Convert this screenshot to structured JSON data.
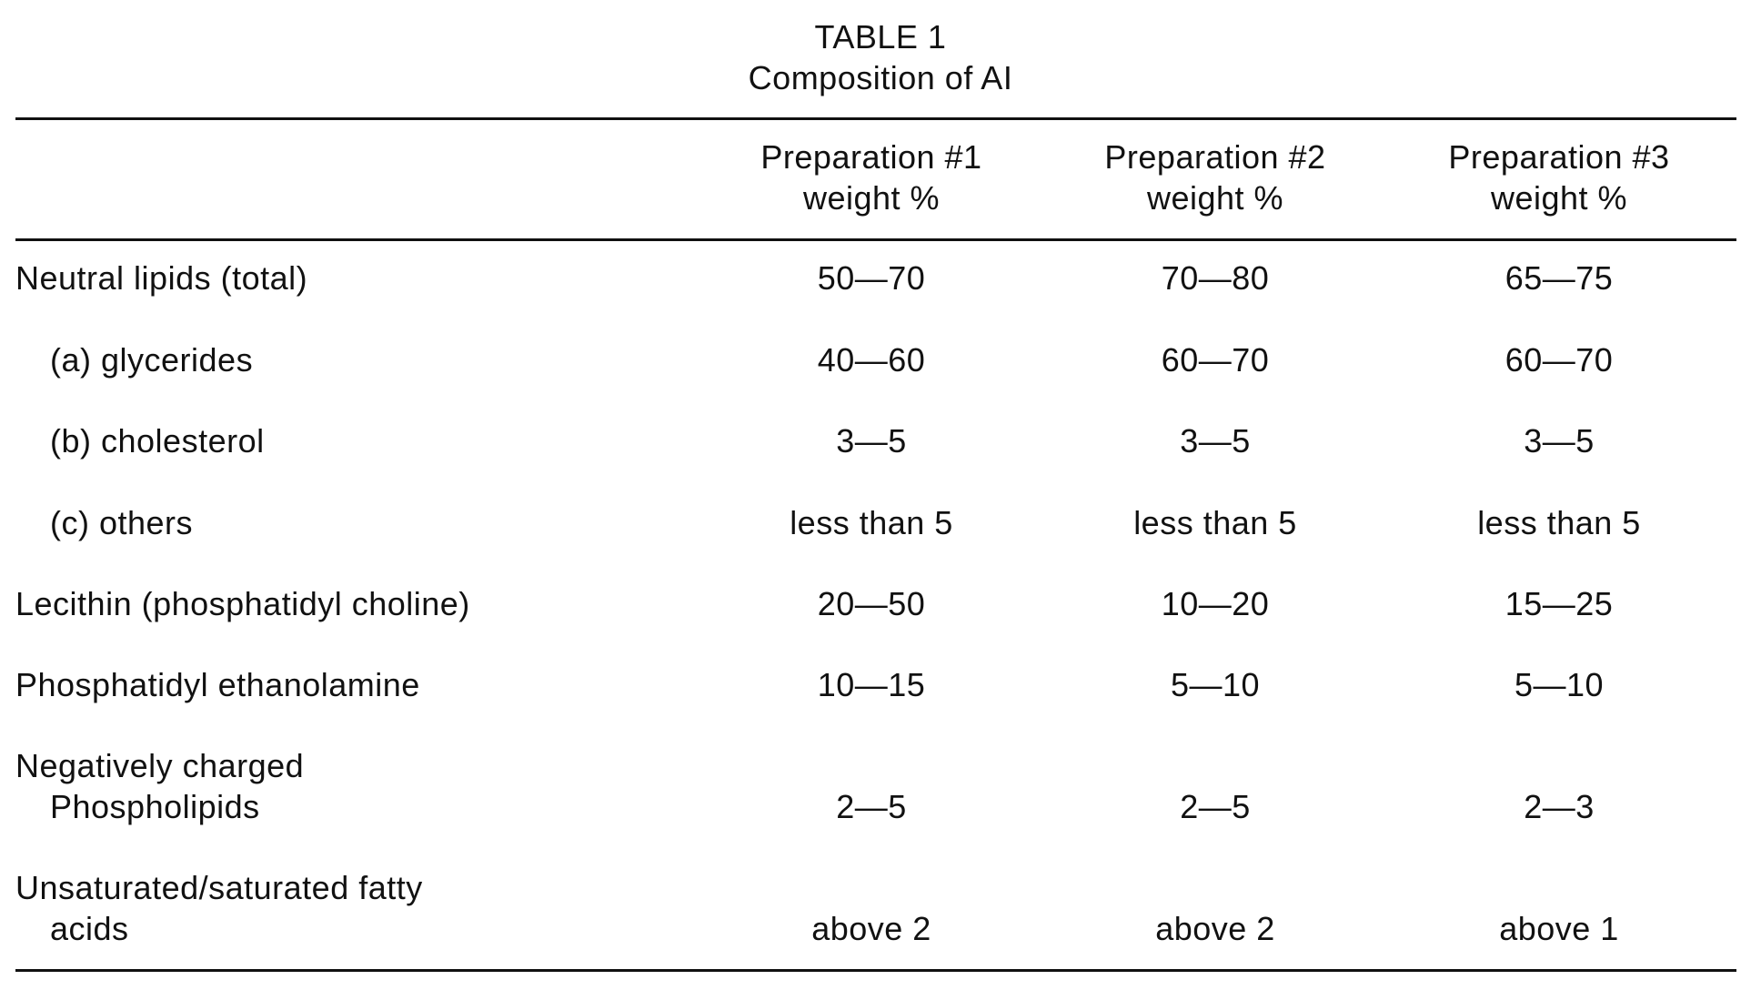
{
  "table": {
    "label": "TABLE 1",
    "title": "Composition of AI",
    "columns": [
      {
        "name": "Preparation #1",
        "unit": "weight %"
      },
      {
        "name": "Preparation #2",
        "unit": "weight %"
      },
      {
        "name": "Preparation #3",
        "unit": "weight %"
      }
    ],
    "rows": [
      {
        "label": "Neutral lipids (total)",
        "values": [
          "50—70",
          "70—80",
          "65—75"
        ]
      },
      {
        "label": "(a) glycerides",
        "values": [
          "40—60",
          "60—70",
          "60—70"
        ]
      },
      {
        "label": "(b) cholesterol",
        "values": [
          "3—5",
          "3—5",
          "3—5"
        ]
      },
      {
        "label": "(c) others",
        "values": [
          "less than 5",
          "less than 5",
          "less than 5"
        ]
      },
      {
        "label": "Lecithin (phosphatidyl choline)",
        "values": [
          "20—50",
          "10—20",
          "15—25"
        ]
      },
      {
        "label": "Phosphatidyl ethanolamine",
        "values": [
          "10—15",
          "5—10",
          "5—10"
        ]
      },
      {
        "label": "Negatively charged",
        "label_cont": "Phospholipids",
        "values": [
          "2—5",
          "2—5",
          "2—3"
        ]
      },
      {
        "label": "Unsaturated/saturated fatty",
        "label_cont": "acids",
        "values": [
          "above 2",
          "above 2",
          "above 1"
        ]
      }
    ]
  }
}
